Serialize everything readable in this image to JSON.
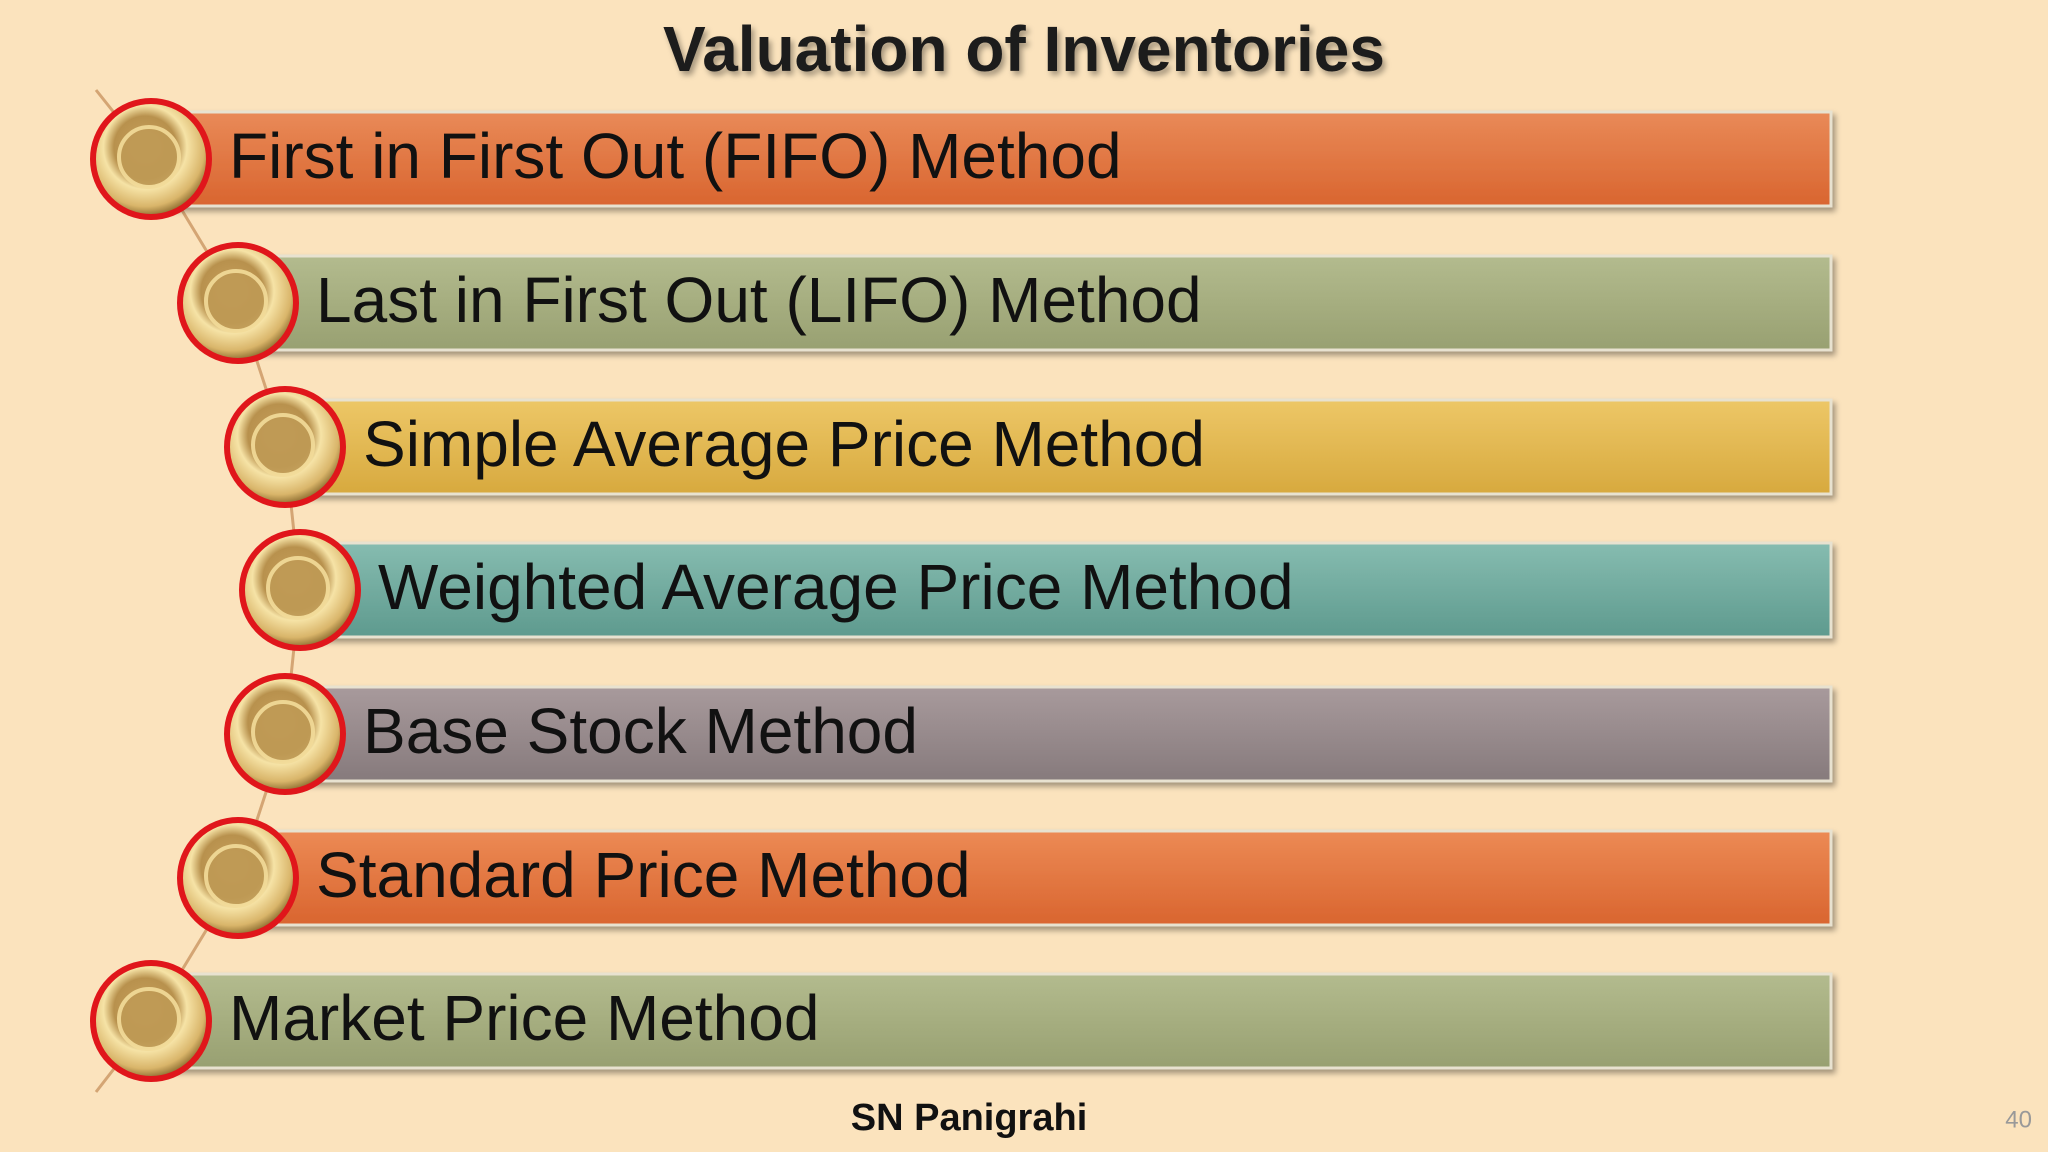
{
  "header": {
    "title": "Valuation of Inventories"
  },
  "items": [
    {
      "label": "First in First Out (FIFO) Method"
    },
    {
      "label": "Last in First Out (LIFO) Method"
    },
    {
      "label": "Simple Average Price Method"
    },
    {
      "label": "Weighted Average Price Method"
    },
    {
      "label": "Base Stock Method"
    },
    {
      "label": "Standard Price Method"
    },
    {
      "label": "Market Price Method"
    }
  ],
  "footer": {
    "author": "SN Panigrahi",
    "page_number": "40"
  }
}
